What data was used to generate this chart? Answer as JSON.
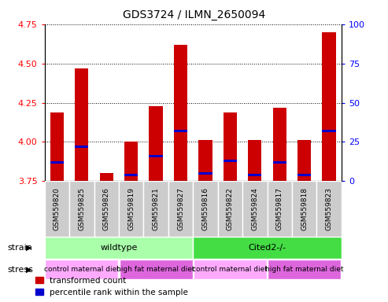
{
  "title": "GDS3724 / ILMN_2650094",
  "samples": [
    "GSM559820",
    "GSM559825",
    "GSM559826",
    "GSM559819",
    "GSM559821",
    "GSM559827",
    "GSM559816",
    "GSM559822",
    "GSM559824",
    "GSM559817",
    "GSM559818",
    "GSM559823"
  ],
  "transformed_count": [
    4.19,
    4.47,
    3.8,
    4.0,
    4.23,
    4.62,
    4.01,
    4.19,
    4.01,
    4.22,
    4.01,
    4.7
  ],
  "percentile_rank": [
    3.87,
    3.97,
    3.74,
    3.79,
    3.91,
    4.07,
    3.8,
    3.88,
    3.79,
    3.87,
    3.79,
    4.07
  ],
  "ylim_left": [
    3.75,
    4.75
  ],
  "ylim_right": [
    0,
    100
  ],
  "yticks_left": [
    3.75,
    4.0,
    4.25,
    4.5,
    4.75
  ],
  "yticks_right": [
    0,
    25,
    50,
    75,
    100
  ],
  "bar_color": "#cc0000",
  "blue_color": "#0000cc",
  "bar_bottom": 3.75,
  "strain_labels": [
    {
      "label": "wildtype",
      "start": 0,
      "end": 6,
      "color": "#aaffaa"
    },
    {
      "label": "Cited2-/-",
      "start": 6,
      "end": 12,
      "color": "#44dd44"
    }
  ],
  "stress_labels": [
    {
      "label": "control maternal diet",
      "start": 0,
      "end": 3,
      "color": "#ffaaff"
    },
    {
      "label": "high fat maternal diet",
      "start": 3,
      "end": 6,
      "color": "#dd66dd"
    },
    {
      "label": "control maternal diet",
      "start": 6,
      "end": 9,
      "color": "#ffaaff"
    },
    {
      "label": "high fat maternal diet",
      "start": 9,
      "end": 12,
      "color": "#dd66dd"
    }
  ],
  "legend_red": "transformed count",
  "legend_blue": "percentile rank within the sample",
  "strain_label": "strain",
  "stress_label": "stress",
  "sample_box_color": "#cccccc",
  "blue_bar_height": 0.018
}
